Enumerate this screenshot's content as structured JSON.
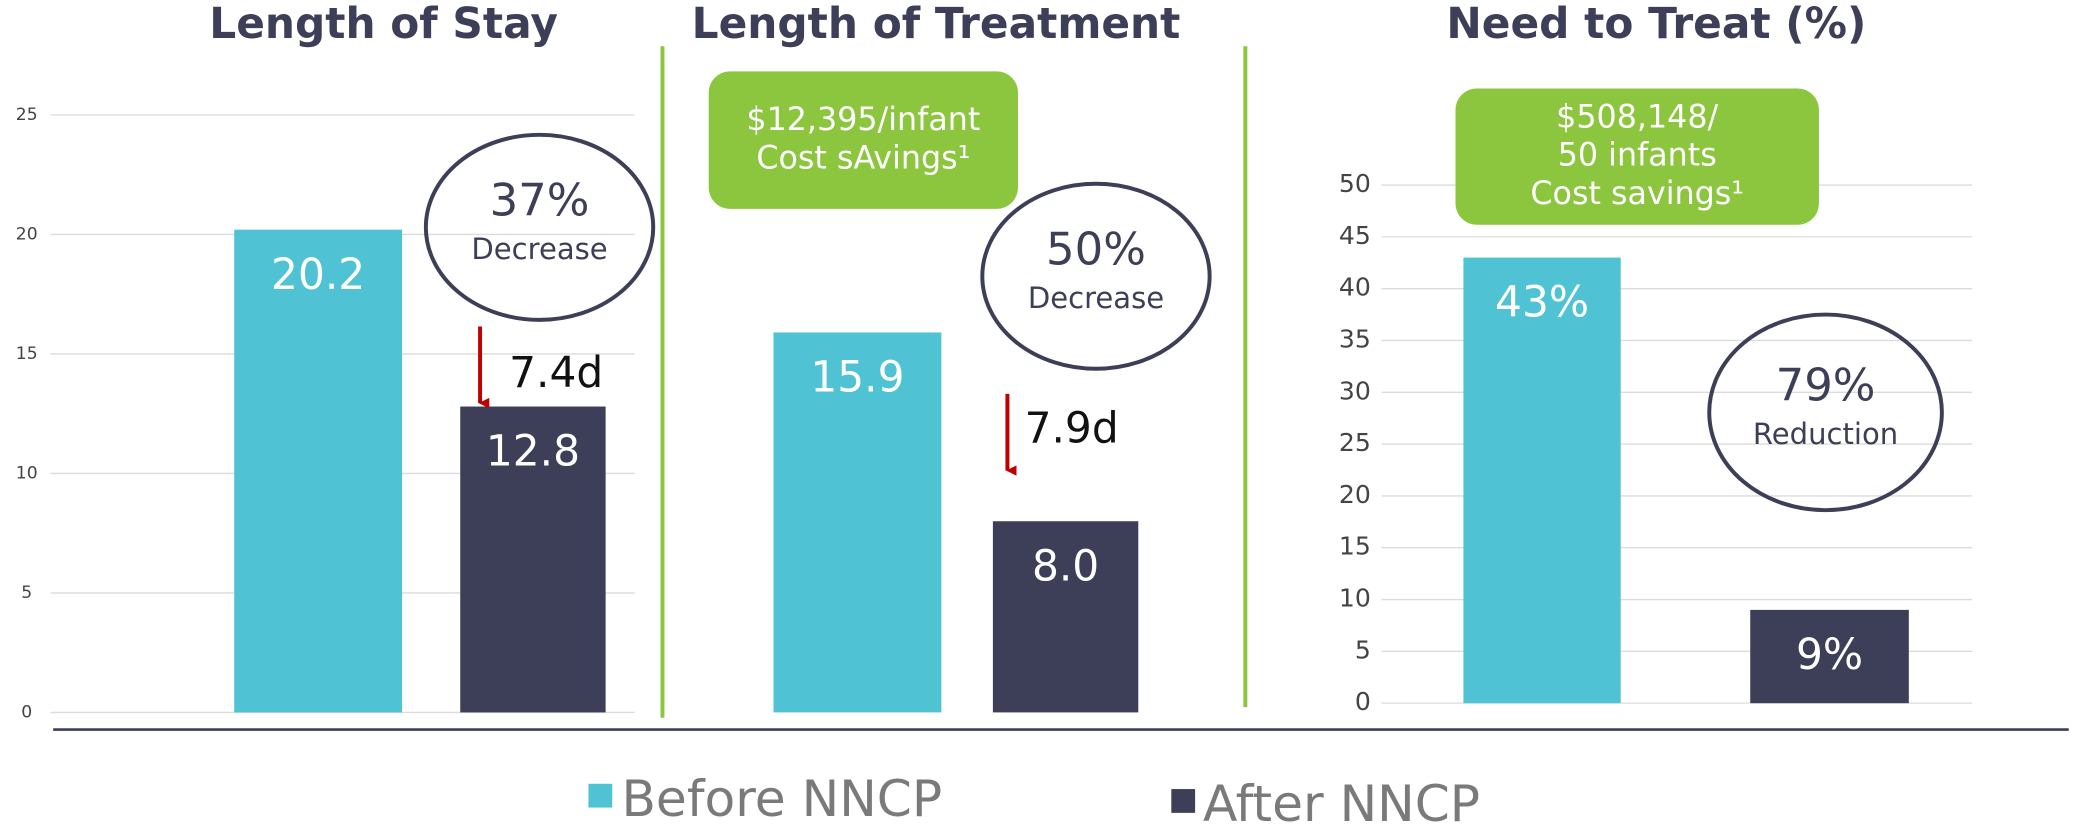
{
  "chart_data": [
    {
      "type": "bar",
      "title": "Length of Stay",
      "series": [
        {
          "name": "Before NNCP",
          "color": "#4fc3d3",
          "values": [
            20.2
          ]
        },
        {
          "name": "After NNCP",
          "color": "#3d3f58",
          "values": [
            12.8
          ]
        }
      ],
      "ylim": [
        0,
        25
      ],
      "yticks": [
        0,
        5,
        10,
        15,
        20,
        25
      ],
      "grid": true,
      "circle": [
        "37%",
        "Decrease"
      ],
      "arrow_label": "7.4d"
    },
    {
      "type": "bar",
      "title": "Length of Treatment",
      "series": [
        {
          "name": "Before NNCP",
          "color": "#4fc3d3",
          "values": [
            15.9
          ]
        },
        {
          "name": "After NNCP",
          "color": "#3d3f58",
          "values": [
            8.0
          ],
          "value_labels": [
            "8.0"
          ]
        }
      ],
      "ylim": [
        0,
        25
      ],
      "callout": [
        "$12,395/infant",
        "Cost sAvings¹"
      ],
      "circle": [
        "50%",
        "Decrease"
      ],
      "arrow_label": "7.9d"
    },
    {
      "type": "bar",
      "title": "Need to Treat (%)",
      "series": [
        {
          "name": "Before NNCP",
          "color": "#4fc3d3",
          "values": [
            43
          ],
          "value_labels": [
            "43%"
          ]
        },
        {
          "name": "After NNCP",
          "color": "#3d3f58",
          "values": [
            9
          ],
          "value_labels": [
            "9%"
          ]
        }
      ],
      "ylim": [
        0,
        50
      ],
      "yticks": [
        0,
        5,
        10,
        15,
        20,
        25,
        30,
        35,
        40,
        45,
        50
      ],
      "grid": true,
      "callout": [
        "$508,148/",
        "50 infants",
        "Cost savings¹"
      ],
      "circle": [
        "79%",
        "Reduction"
      ]
    }
  ]
}
